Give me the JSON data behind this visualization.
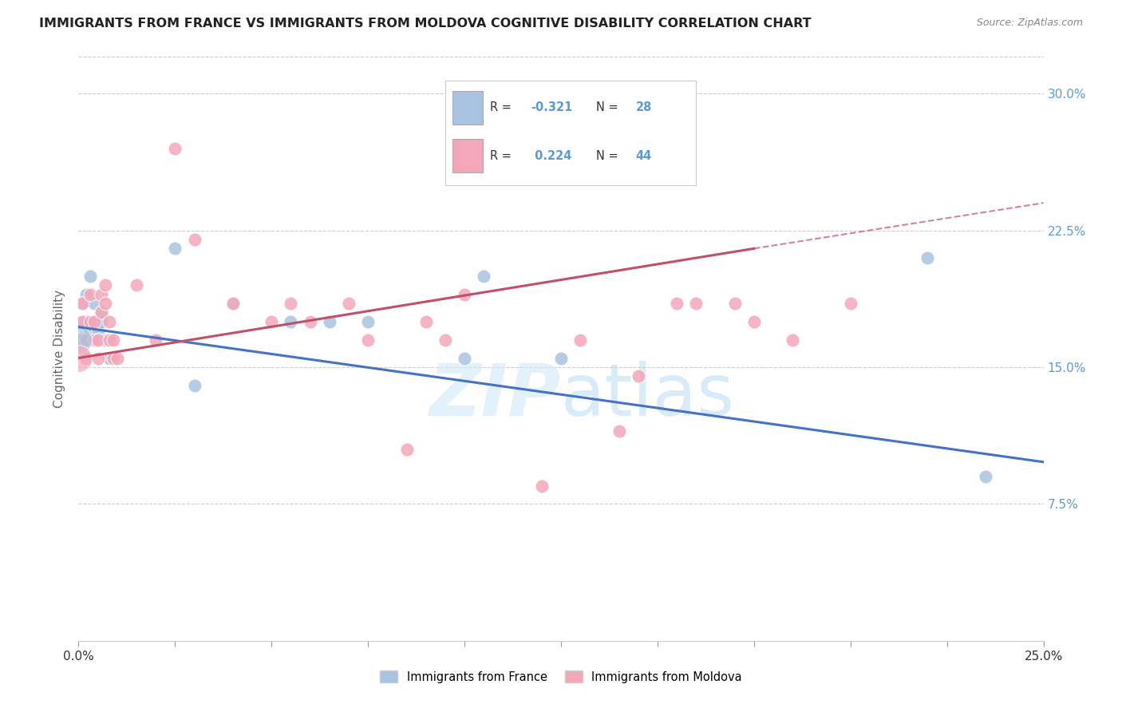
{
  "title": "IMMIGRANTS FROM FRANCE VS IMMIGRANTS FROM MOLDOVA COGNITIVE DISABILITY CORRELATION CHART",
  "source": "Source: ZipAtlas.com",
  "ylabel_label": "Cognitive Disability",
  "legend_label1": "Immigrants from France",
  "legend_label2": "Immigrants from Moldova",
  "R_france": -0.321,
  "N_france": 28,
  "R_moldova": 0.224,
  "N_moldova": 44,
  "color_france": "#a8c4e0",
  "color_moldova": "#f4a7b9",
  "line_france": "#4472c4",
  "line_moldova": "#c0506a",
  "xmin": 0.0,
  "xmax": 0.25,
  "ymin": 0.0,
  "ymax": 0.32,
  "yticks": [
    0.075,
    0.15,
    0.225,
    0.3
  ],
  "xtick_positions": [
    0.0,
    0.025,
    0.05,
    0.075,
    0.1,
    0.125,
    0.15,
    0.175,
    0.2,
    0.225,
    0.25
  ],
  "france_x": [
    0.001,
    0.001,
    0.001,
    0.002,
    0.002,
    0.002,
    0.003,
    0.003,
    0.004,
    0.004,
    0.005,
    0.005,
    0.005,
    0.006,
    0.006,
    0.007,
    0.008,
    0.025,
    0.03,
    0.04,
    0.055,
    0.065,
    0.075,
    0.1,
    0.105,
    0.125,
    0.22,
    0.235
  ],
  "france_y": [
    0.175,
    0.185,
    0.165,
    0.19,
    0.175,
    0.165,
    0.17,
    0.2,
    0.175,
    0.185,
    0.175,
    0.17,
    0.165,
    0.175,
    0.18,
    0.165,
    0.155,
    0.215,
    0.14,
    0.185,
    0.175,
    0.175,
    0.175,
    0.155,
    0.2,
    0.155,
    0.21,
    0.09
  ],
  "moldova_x": [
    0.001,
    0.001,
    0.001,
    0.002,
    0.002,
    0.003,
    0.003,
    0.004,
    0.004,
    0.005,
    0.005,
    0.006,
    0.006,
    0.007,
    0.007,
    0.008,
    0.008,
    0.009,
    0.009,
    0.01,
    0.015,
    0.02,
    0.025,
    0.03,
    0.04,
    0.05,
    0.055,
    0.06,
    0.07,
    0.075,
    0.085,
    0.09,
    0.095,
    0.1,
    0.12,
    0.13,
    0.14,
    0.145,
    0.155,
    0.16,
    0.17,
    0.175,
    0.185,
    0.2
  ],
  "moldova_y": [
    0.165,
    0.175,
    0.185,
    0.165,
    0.155,
    0.175,
    0.19,
    0.165,
    0.175,
    0.165,
    0.155,
    0.19,
    0.18,
    0.195,
    0.185,
    0.165,
    0.175,
    0.165,
    0.155,
    0.155,
    0.195,
    0.165,
    0.27,
    0.22,
    0.185,
    0.175,
    0.185,
    0.175,
    0.185,
    0.165,
    0.105,
    0.175,
    0.165,
    0.19,
    0.085,
    0.165,
    0.115,
    0.145,
    0.185,
    0.185,
    0.185,
    0.175,
    0.165,
    0.185
  ],
  "watermark": "ZIPatlas",
  "background_color": "#ffffff",
  "grid_color": "#cccccc"
}
